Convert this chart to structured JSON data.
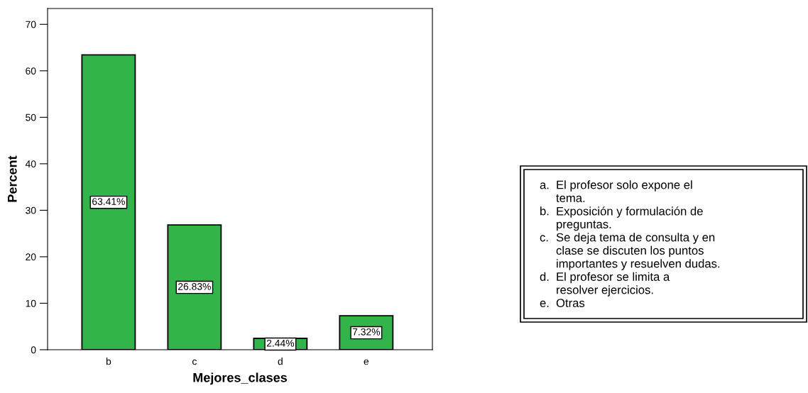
{
  "chart_data": {
    "type": "bar",
    "xlabel": "Mejores_clases",
    "ylabel": "Percent",
    "categories": [
      "b",
      "c",
      "d",
      "e"
    ],
    "values": [
      63.41,
      26.83,
      2.44,
      7.32
    ],
    "value_labels": [
      "63.41%",
      "26.83%",
      "2.44%",
      "7.32%"
    ],
    "color": "#33b44a",
    "ylim": [
      0,
      73.4
    ],
    "yticks": [
      0,
      10,
      20,
      30,
      40,
      50,
      60,
      70
    ],
    "grid": false,
    "annotations": [
      "a. El profesor solo expone el tema.",
      "b. Exposición y formulación de preguntas.",
      "c. Se deja tema de consulta y en clase se discuten los puntos importantes y resuelven dudas.",
      "d. El profesor se limita a resolver ejercicios.",
      "e. Otras"
    ]
  }
}
